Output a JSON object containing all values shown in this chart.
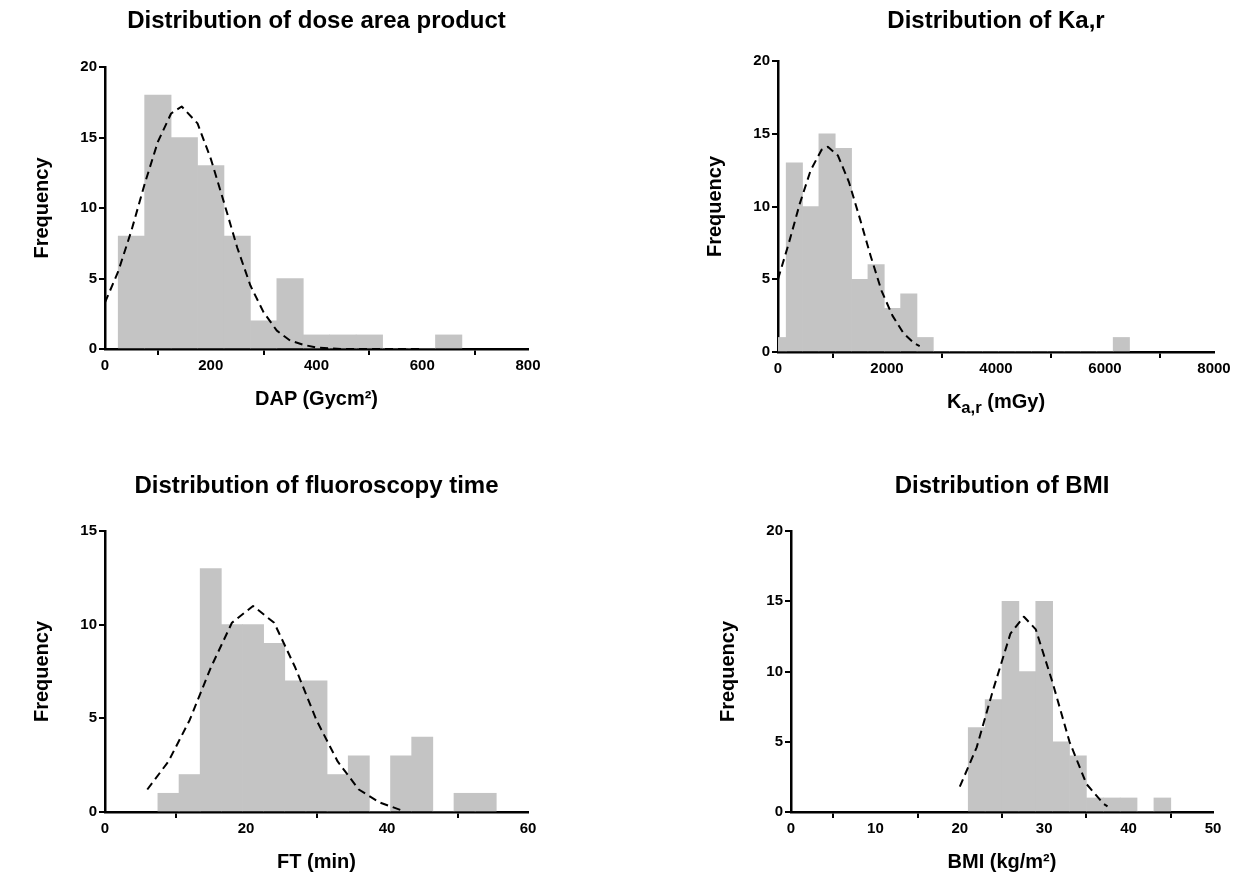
{
  "chart_data": [
    {
      "type": "histogram",
      "title": "Distribution of dose area product",
      "xlabel": "DAP (Gycm²)",
      "ylabel": "Frequency",
      "color": "#c4c4c4",
      "marker": "none",
      "bins": [
        25,
        75,
        125,
        175,
        225,
        275,
        325,
        375,
        425,
        475,
        525,
        575,
        625,
        675
      ],
      "values": [
        8,
        18,
        15,
        13,
        8,
        2,
        5,
        1,
        1,
        1,
        0,
        0,
        1
      ],
      "xlim": [
        0,
        800
      ],
      "xticks": [
        0,
        200,
        400,
        600,
        800
      ],
      "ylim": [
        0,
        20
      ],
      "yticks": [
        0,
        5,
        10,
        15,
        20
      ],
      "series": [
        {
          "type": "line",
          "color": "#000000",
          "line_style": "dashed",
          "x": [
            0,
            25,
            50,
            75,
            100,
            125,
            145,
            175,
            200,
            225,
            250,
            275,
            300,
            325,
            350,
            375,
            400,
            450,
            500,
            600
          ],
          "values": [
            3.3,
            5.5,
            8.4,
            11.7,
            14.7,
            16.7,
            17.2,
            16.0,
            13.5,
            10.4,
            7.2,
            4.5,
            2.6,
            1.3,
            0.6,
            0.3,
            0.1,
            0,
            0,
            0
          ]
        }
      ]
    },
    {
      "type": "histogram",
      "title": "Distribution of Ka,r",
      "xlabel": "K$_{a,r}$ (mGy)",
      "ylabel": "Frequency",
      "color": "#c4c4c4",
      "marker": "none",
      "bins": [
        0,
        150,
        450,
        750,
        1050,
        1350,
        1650,
        1950,
        2250,
        2550,
        2850,
        3150,
        3450,
        3750,
        4050,
        4350,
        4650,
        4950,
        5250,
        5550,
        5850,
        6150,
        6450
      ],
      "values": [
        1,
        13,
        10,
        15,
        14,
        5,
        6,
        3,
        4,
        1,
        0,
        0,
        0,
        0,
        0,
        0,
        0,
        0,
        0,
        0,
        0,
        1
      ],
      "xlim": [
        0,
        8000
      ],
      "xticks": [
        0,
        2000,
        4000,
        6000,
        8000
      ],
      "ylim": [
        0,
        20
      ],
      "yticks": [
        0,
        5,
        10,
        15,
        20
      ],
      "series": [
        {
          "type": "line",
          "color": "#000000",
          "line_style": "dashed",
          "x": [
            0,
            200,
            400,
            600,
            800,
            914,
            1100,
            1300,
            1500,
            1700,
            1900,
            2100,
            2300,
            2500,
            2600
          ],
          "values": [
            5.0,
            7.5,
            10.2,
            12.5,
            13.9,
            14.1,
            13.5,
            11.7,
            9.2,
            6.6,
            4.2,
            2.5,
            1.3,
            0.6,
            0.4
          ]
        }
      ]
    },
    {
      "type": "histogram",
      "title": "Distribution of fluoroscopy time",
      "xlabel": "FT (min)",
      "ylabel": "Frequency",
      "color": "#c4c4c4",
      "marker": "none",
      "bins": [
        7.5,
        10.5,
        13.5,
        16.5,
        19.5,
        22.5,
        25.5,
        28.5,
        31.5,
        34.5,
        37.5,
        40.5,
        43.5,
        46.5,
        49.5,
        52.5,
        55.5
      ],
      "values": [
        1,
        2,
        13,
        10,
        10,
        9,
        7,
        7,
        2,
        3,
        0,
        3,
        4,
        0,
        1,
        1
      ],
      "xlim": [
        0,
        60
      ],
      "xticks": [
        0,
        20,
        40,
        60
      ],
      "ylim": [
        0,
        15
      ],
      "yticks": [
        0,
        5,
        10,
        15
      ],
      "series": [
        {
          "type": "line",
          "color": "#000000",
          "line_style": "dashed",
          "x": [
            6,
            9,
            12,
            15,
            18,
            21,
            24,
            27,
            30,
            33,
            36,
            39,
            42
          ],
          "values": [
            1.2,
            2.7,
            4.9,
            7.7,
            10.1,
            11,
            10.1,
            7.7,
            4.9,
            2.7,
            1.2,
            0.5,
            0.1
          ]
        }
      ]
    },
    {
      "type": "histogram",
      "title": "Distribution of BMI",
      "xlabel": "BMI (kg/m²)",
      "ylabel": "Frequency",
      "color": "#c4c4c4",
      "marker": "none",
      "bins": [
        21,
        23,
        25,
        27,
        29,
        31,
        33,
        35,
        37,
        39,
        41,
        43,
        45
      ],
      "values": [
        6,
        8,
        15,
        10,
        15,
        5,
        4,
        1,
        1,
        1,
        0,
        1
      ],
      "xlim": [
        0,
        50
      ],
      "xticks": [
        0,
        10,
        20,
        30,
        40,
        50
      ],
      "ylim": [
        0,
        20
      ],
      "yticks": [
        0,
        5,
        10,
        15,
        20
      ],
      "series": [
        {
          "type": "line",
          "color": "#000000",
          "line_style": "dashed",
          "x": [
            20,
            22,
            24,
            26,
            27.6,
            29,
            31,
            33,
            35,
            37,
            37.5
          ],
          "values": [
            1.8,
            4.6,
            8.8,
            12.7,
            13.9,
            13.0,
            9.2,
            5.0,
            2.0,
            0.6,
            0.4
          ]
        }
      ]
    }
  ]
}
